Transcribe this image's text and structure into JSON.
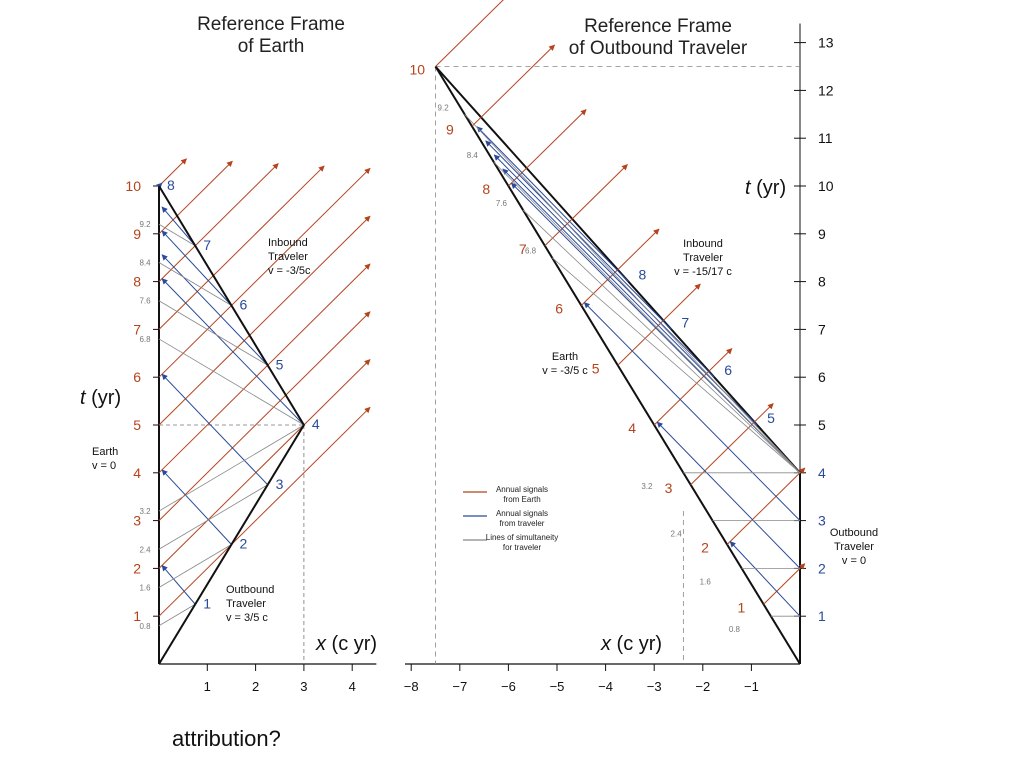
{
  "left": {
    "title_line1": "Reference Frame",
    "title_line2": "of Earth",
    "x_ticks": [
      "1",
      "2",
      "3",
      "4"
    ],
    "earth_years": [
      "1",
      "2",
      "3",
      "4",
      "5",
      "6",
      "7",
      "8",
      "9",
      "10"
    ],
    "traveler_years": [
      "1",
      "2",
      "3",
      "4",
      "5",
      "6",
      "7",
      "8"
    ],
    "simultaneity_labels": [
      "0.8",
      "1.6",
      "2.4",
      "3.2",
      "6.8",
      "7.6",
      "8.4",
      "9.2"
    ],
    "t_label_italic": "t",
    "t_label_unit": "(yr)",
    "x_label_italic": "x",
    "x_label_unit": "(c yr)",
    "earth_label": [
      "Earth",
      "v = 0"
    ],
    "inbound_label": [
      "Inbound",
      "Traveler",
      "v = -3/5c"
    ],
    "outbound_label": [
      "Outbound",
      "Traveler",
      "v = 3/5 c"
    ]
  },
  "right": {
    "title_line1": "Reference Frame",
    "title_line2": "of Outbound Traveler",
    "x_ticks": [
      "−8",
      "−7",
      "−6",
      "−5",
      "−4",
      "−3",
      "−2",
      "−1"
    ],
    "t_ticks": [
      "1",
      "2",
      "3",
      "4",
      "5",
      "6",
      "7",
      "8",
      "9",
      "10",
      "11",
      "12",
      "13"
    ],
    "earth_years": [
      "1",
      "2",
      "3",
      "4",
      "5",
      "6",
      "7",
      "8",
      "9",
      "10"
    ],
    "traveler_years": [
      "5",
      "6",
      "7",
      "8"
    ],
    "simultaneity_labels": [
      "0.8",
      "1.6",
      "2.4",
      "3.2",
      "6.8",
      "7.6",
      "8.4",
      "9.2"
    ],
    "t_label_italic": "t",
    "t_label_unit": "(yr)",
    "x_label_italic": "x",
    "x_label_unit": "(c yr)",
    "earth_label": [
      "Earth",
      "v = -3/5 c"
    ],
    "inbound_label": [
      "Inbound",
      "Traveler",
      "v = -15/17 c"
    ],
    "outbound_label": [
      "Outbound",
      "Traveler",
      "v = 0"
    ],
    "legend": [
      {
        "text": [
          "Annual signals",
          "from Earth"
        ],
        "color": "#b5431c"
      },
      {
        "text": [
          "Annual signals",
          "from traveler"
        ],
        "color": "#2a4a9a"
      },
      {
        "text": [
          "Lines of simultaneity",
          "for traveler"
        ],
        "color": "#888888"
      }
    ]
  },
  "colors": {
    "earth_signal": "#b5431c",
    "traveler_signal": "#2a4a9a",
    "simultaneity": "#8a8a8a",
    "worldline": "#111111",
    "earth_number": "#b5431c",
    "traveler_number": "#2a4a9a"
  },
  "footer": {
    "attribution": "attribution?"
  }
}
